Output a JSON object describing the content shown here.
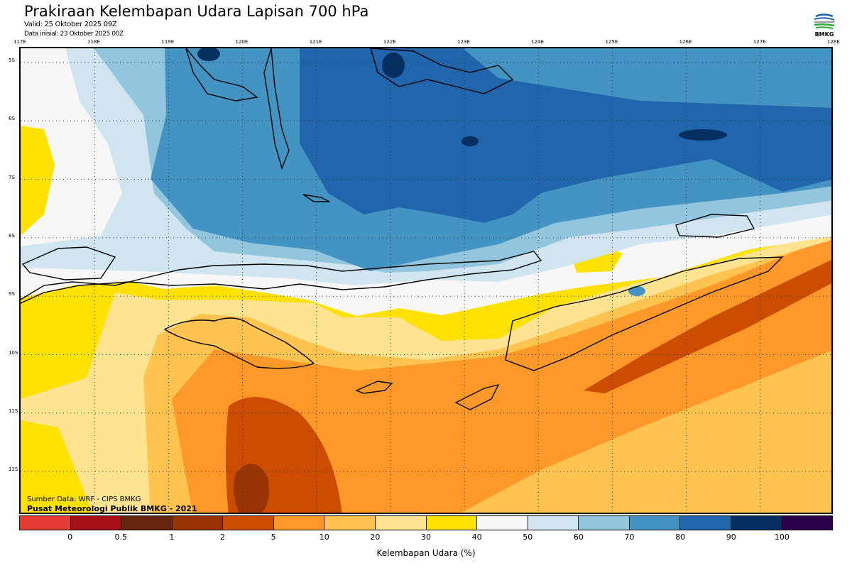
{
  "header": {
    "title": "Prakiraan Kelembapan Udara Lapisan 700 hPa",
    "valid": "Valid: 25 Oktober 2025 09Z",
    "initial": "Data inisial: 23 Oktober 2025 00Z",
    "logo_text": "BMKG"
  },
  "map": {
    "lon_labels": [
      "117E",
      "118E",
      "119E",
      "120E",
      "121E",
      "122E",
      "123E",
      "124E",
      "125E",
      "126E",
      "127E",
      "128E"
    ],
    "lat_labels": [
      "5S",
      "6S",
      "7S",
      "8S",
      "9S",
      "10S",
      "11S",
      "12S"
    ],
    "source": "Sumber Data: WRF - CIPS BMKG",
    "publisher": "Pusat Meteorologi Publik BMKG - 2021"
  },
  "colorbar": {
    "colors": [
      "#e33b32",
      "#a50f15",
      "#67250e",
      "#983306",
      "#cc4c02",
      "#fe9929",
      "#fec44f",
      "#fee391",
      "#ffe100",
      "#f7f7f7",
      "#d1e5f0",
      "#92c5de",
      "#4393c3",
      "#2166ac",
      "#053061",
      "#2d004b"
    ],
    "labels": [
      "0",
      "0.5",
      "1",
      "2",
      "5",
      "10",
      "20",
      "30",
      "40",
      "50",
      "60",
      "70",
      "80",
      "90",
      "100"
    ],
    "title": "Kelembapan Udara (%)"
  }
}
